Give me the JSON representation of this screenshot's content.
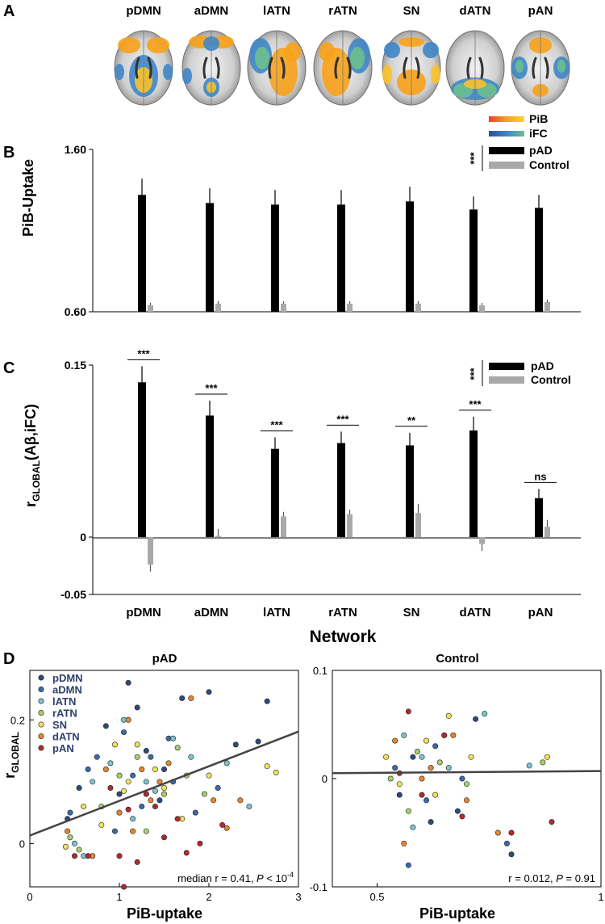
{
  "panel_labels": {
    "A": "A",
    "B": "B",
    "C": "C",
    "D": "D"
  },
  "colors": {
    "pad": "#000000",
    "control": "#a9a9a9",
    "pib_grad": [
      "#e8412b",
      "#f7a21a",
      "#f9d33a"
    ],
    "ifc_grad": [
      "#2a4f9c",
      "#3f86c6",
      "#6dbf8e"
    ],
    "fit_line": "#444444",
    "network_colors": {
      "pDMN": "#2e4a7c",
      "aDMN": "#3b6aa8",
      "lATN": "#7bc4cf",
      "rATN": "#a8cf6e",
      "SN": "#f2e15a",
      "dATN": "#e8852f",
      "pAN": "#b12a2f"
    }
  },
  "panel_a": {
    "networks": [
      "pDMN",
      "aDMN",
      "lATN",
      "rATN",
      "SN",
      "dATN",
      "pAN"
    ],
    "legend": {
      "pib": "PiB",
      "ifc": "iFC"
    }
  },
  "chart_data": [
    {
      "id": "B",
      "type": "bar",
      "title": "",
      "ylabel": "PiB-Uptake",
      "xlabel": "",
      "categories": [
        "pDMN",
        "aDMN",
        "lATN",
        "rATN",
        "SN",
        "dATN",
        "pAN"
      ],
      "ylim": [
        0.6,
        1.6
      ],
      "yticks": [
        "0.60",
        "1.60"
      ],
      "series": [
        {
          "name": "pAD",
          "values": [
            1.32,
            1.27,
            1.26,
            1.26,
            1.28,
            1.23,
            1.24
          ],
          "errors": [
            0.1,
            0.09,
            0.09,
            0.09,
            0.09,
            0.08,
            0.08
          ]
        },
        {
          "name": "Control",
          "values": [
            0.64,
            0.65,
            0.65,
            0.65,
            0.65,
            0.64,
            0.66
          ],
          "errors": [
            0.015,
            0.015,
            0.015,
            0.015,
            0.015,
            0.015,
            0.015
          ]
        }
      ],
      "legend_sig": "***",
      "legend_position": "top-right"
    },
    {
      "id": "C",
      "type": "bar",
      "ylabel_main": "r",
      "ylabel_sub": "GLOBAL",
      "ylabel_rest": "(Aβ,iFC)",
      "xlabel": "Network",
      "categories": [
        "pDMN",
        "aDMN",
        "lATN",
        "rATN",
        "SN",
        "dATN",
        "pAN"
      ],
      "ylim": [
        -0.05,
        0.15
      ],
      "yticks": [
        "0.15",
        "0",
        "-0.05"
      ],
      "series": [
        {
          "name": "pAD",
          "values": [
            0.135,
            0.106,
            0.077,
            0.082,
            0.08,
            0.093,
            0.034
          ],
          "errors": [
            0.014,
            0.013,
            0.01,
            0.01,
            0.011,
            0.012,
            0.008
          ]
        },
        {
          "name": "Control",
          "values": [
            -0.024,
            0.001,
            0.018,
            0.02,
            0.021,
            -0.006,
            0.009
          ],
          "errors": [
            0.006,
            0.006,
            0.004,
            0.004,
            0.008,
            0.006,
            0.006
          ]
        }
      ],
      "significance": [
        "***",
        "***",
        "***",
        "***",
        "**",
        "***",
        "ns"
      ],
      "legend_sig": "***",
      "legend_position": "top-right"
    },
    {
      "id": "D-left",
      "type": "scatter",
      "title": "pAD",
      "xlabel": "PiB-uptake",
      "ylabel_main": "r",
      "ylabel_sub": "GLOBAL",
      "xlim": [
        0,
        3
      ],
      "ylim": [
        -0.07,
        0.28
      ],
      "xticks": [
        "0",
        "1",
        "2",
        "3"
      ],
      "yticks": [
        "0",
        "0.2"
      ],
      "fit_line": {
        "intercept": 0.013,
        "slope": 0.056
      },
      "annotation": {
        "prefix": "median r = 0.41, ",
        "p": "P",
        "mid": " < 10",
        "exp": "-4"
      },
      "legend_position": "top-left",
      "points": [
        {
          "net": "pDMN",
          "x": 0.42,
          "y": 0.04
        },
        {
          "net": "pDMN",
          "x": 0.55,
          "y": 0.09
        },
        {
          "net": "pDMN",
          "x": 0.85,
          "y": 0.19
        },
        {
          "net": "pDMN",
          "x": 1.1,
          "y": 0.26
        },
        {
          "net": "pDMN",
          "x": 1.3,
          "y": 0.15
        },
        {
          "net": "pDMN",
          "x": 1.5,
          "y": 0.12
        },
        {
          "net": "pDMN",
          "x": 1.7,
          "y": 0.235
        },
        {
          "net": "pDMN",
          "x": 2.0,
          "y": 0.245
        },
        {
          "net": "pDMN",
          "x": 2.3,
          "y": 0.16
        },
        {
          "net": "pDMN",
          "x": 2.55,
          "y": 0.165
        },
        {
          "net": "pDMN",
          "x": 2.65,
          "y": 0.23
        },
        {
          "net": "pDMN",
          "x": 1.0,
          "y": 0.08
        },
        {
          "net": "pDMN",
          "x": 1.45,
          "y": 0.07
        },
        {
          "net": "pDMN",
          "x": 1.2,
          "y": 0.22
        },
        {
          "net": "aDMN",
          "x": 0.45,
          "y": 0.05
        },
        {
          "net": "aDMN",
          "x": 0.65,
          "y": 0.12
        },
        {
          "net": "aDMN",
          "x": 0.75,
          "y": 0.14
        },
        {
          "net": "aDMN",
          "x": 1.05,
          "y": 0.18
        },
        {
          "net": "aDMN",
          "x": 1.25,
          "y": 0.06
        },
        {
          "net": "aDMN",
          "x": 1.55,
          "y": 0.17
        },
        {
          "net": "aDMN",
          "x": 1.6,
          "y": 0.1
        },
        {
          "net": "aDMN",
          "x": 1.85,
          "y": 0.05
        },
        {
          "net": "aDMN",
          "x": 2.1,
          "y": 0.09
        },
        {
          "net": "aDMN",
          "x": 0.95,
          "y": 0.02
        },
        {
          "net": "aDMN",
          "x": 1.35,
          "y": 0.14
        },
        {
          "net": "aDMN",
          "x": 1.15,
          "y": 0.11
        },
        {
          "net": "lATN",
          "x": 0.5,
          "y": 0.0
        },
        {
          "net": "lATN",
          "x": 0.7,
          "y": 0.1
        },
        {
          "net": "lATN",
          "x": 0.9,
          "y": 0.13
        },
        {
          "net": "lATN",
          "x": 1.05,
          "y": 0.2
        },
        {
          "net": "lATN",
          "x": 1.3,
          "y": 0.1
        },
        {
          "net": "lATN",
          "x": 1.6,
          "y": 0.17
        },
        {
          "net": "lATN",
          "x": 1.8,
          "y": 0.14
        },
        {
          "net": "lATN",
          "x": 2.2,
          "y": 0.13
        },
        {
          "net": "lATN",
          "x": 2.45,
          "y": 0.06
        },
        {
          "net": "lATN",
          "x": 1.15,
          "y": 0.04
        },
        {
          "net": "lATN",
          "x": 1.4,
          "y": 0.085
        },
        {
          "net": "lATN",
          "x": 0.6,
          "y": -0.02
        },
        {
          "net": "rATN",
          "x": 0.45,
          "y": 0.01
        },
        {
          "net": "rATN",
          "x": 0.8,
          "y": 0.06
        },
        {
          "net": "rATN",
          "x": 1.0,
          "y": 0.11
        },
        {
          "net": "rATN",
          "x": 1.2,
          "y": 0.14
        },
        {
          "net": "rATN",
          "x": 1.5,
          "y": 0.08
        },
        {
          "net": "rATN",
          "x": 1.75,
          "y": 0.11
        },
        {
          "net": "rATN",
          "x": 1.95,
          "y": 0.08
        },
        {
          "net": "rATN",
          "x": 1.3,
          "y": 0.02
        },
        {
          "net": "rATN",
          "x": 0.55,
          "y": -0.01
        },
        {
          "net": "rATN",
          "x": 1.65,
          "y": 0.155
        },
        {
          "net": "SN",
          "x": 0.4,
          "y": -0.005
        },
        {
          "net": "SN",
          "x": 0.6,
          "y": 0.06
        },
        {
          "net": "SN",
          "x": 0.8,
          "y": 0.03
        },
        {
          "net": "SN",
          "x": 0.95,
          "y": 0.16
        },
        {
          "net": "SN",
          "x": 1.1,
          "y": 0.1
        },
        {
          "net": "SN",
          "x": 1.2,
          "y": 0.16
        },
        {
          "net": "SN",
          "x": 1.4,
          "y": 0.12
        },
        {
          "net": "SN",
          "x": 1.7,
          "y": 0.04
        },
        {
          "net": "SN",
          "x": 2.0,
          "y": 0.11
        },
        {
          "net": "SN",
          "x": 2.65,
          "y": 0.125
        },
        {
          "net": "SN",
          "x": 2.75,
          "y": 0.115
        },
        {
          "net": "SN",
          "x": 1.5,
          "y": 0.09
        },
        {
          "net": "SN",
          "x": 1.05,
          "y": 0.085
        },
        {
          "net": "dATN",
          "x": 0.42,
          "y": 0.02
        },
        {
          "net": "dATN",
          "x": 0.7,
          "y": -0.02
        },
        {
          "net": "dATN",
          "x": 1.0,
          "y": 0.05
        },
        {
          "net": "dATN",
          "x": 1.1,
          "y": 0.2
        },
        {
          "net": "dATN",
          "x": 1.25,
          "y": 0.12
        },
        {
          "net": "dATN",
          "x": 1.35,
          "y": 0.07
        },
        {
          "net": "dATN",
          "x": 1.55,
          "y": 0.13
        },
        {
          "net": "dATN",
          "x": 1.8,
          "y": 0.235
        },
        {
          "net": "dATN",
          "x": 2.05,
          "y": 0.07
        },
        {
          "net": "dATN",
          "x": 2.2,
          "y": 0.025
        },
        {
          "net": "dATN",
          "x": 2.35,
          "y": 0.07
        },
        {
          "net": "dATN",
          "x": 1.15,
          "y": 0.02
        },
        {
          "net": "dATN",
          "x": 0.85,
          "y": 0.12
        },
        {
          "net": "dATN",
          "x": 1.45,
          "y": 0.1
        },
        {
          "net": "pAN",
          "x": 0.5,
          "y": -0.02
        },
        {
          "net": "pAN",
          "x": 0.65,
          "y": -0.02
        },
        {
          "net": "pAN",
          "x": 1.0,
          "y": -0.02
        },
        {
          "net": "pAN",
          "x": 1.05,
          "y": -0.07
        },
        {
          "net": "pAN",
          "x": 1.2,
          "y": -0.03
        },
        {
          "net": "pAN",
          "x": 1.4,
          "y": 0.06
        },
        {
          "net": "pAN",
          "x": 1.5,
          "y": 0.01
        },
        {
          "net": "pAN",
          "x": 1.65,
          "y": 0.04
        },
        {
          "net": "pAN",
          "x": 1.75,
          "y": -0.015
        },
        {
          "net": "pAN",
          "x": 1.9,
          "y": 0.0
        },
        {
          "net": "pAN",
          "x": 2.15,
          "y": 0.03
        },
        {
          "net": "pAN",
          "x": 1.1,
          "y": 0.055
        },
        {
          "net": "pAN",
          "x": 0.9,
          "y": 0.09
        },
        {
          "net": "pAN",
          "x": 1.3,
          "y": 0.08
        }
      ]
    },
    {
      "id": "D-right",
      "type": "scatter",
      "title": "Control",
      "xlabel": "PiB-uptake",
      "ylabel_main": "",
      "xlim": [
        0.4,
        1.0
      ],
      "ylim": [
        -0.1,
        0.1
      ],
      "xticks": [
        "0.5",
        "1"
      ],
      "yticks": [
        "0.1",
        "0",
        "-0.1"
      ],
      "fit_line": {
        "intercept": 0.0037,
        "slope": 0.0033
      },
      "annotation": {
        "text1": "r = 0.012, ",
        "p": "P",
        "text2": " = 0.91"
      },
      "points": [
        {
          "net": "pDMN",
          "x": 0.58,
          "y": 0.02
        },
        {
          "net": "pDMN",
          "x": 0.62,
          "y": -0.04
        },
        {
          "net": "pDMN",
          "x": 0.65,
          "y": 0.04
        },
        {
          "net": "pDMN",
          "x": 0.72,
          "y": 0.055
        },
        {
          "net": "pDMN",
          "x": 0.8,
          "y": -0.07
        },
        {
          "net": "pDMN",
          "x": 0.55,
          "y": -0.015
        },
        {
          "net": "pDMN",
          "x": 0.68,
          "y": -0.03
        },
        {
          "net": "aDMN",
          "x": 0.54,
          "y": 0.01
        },
        {
          "net": "aDMN",
          "x": 0.57,
          "y": -0.08
        },
        {
          "net": "aDMN",
          "x": 0.63,
          "y": 0.03
        },
        {
          "net": "aDMN",
          "x": 0.69,
          "y": 0.0
        },
        {
          "net": "aDMN",
          "x": 0.79,
          "y": -0.06
        },
        {
          "net": "aDMN",
          "x": 0.61,
          "y": -0.02
        },
        {
          "net": "lATN",
          "x": 0.56,
          "y": 0.04
        },
        {
          "net": "lATN",
          "x": 0.6,
          "y": 0.02
        },
        {
          "net": "lATN",
          "x": 0.66,
          "y": 0.01
        },
        {
          "net": "lATN",
          "x": 0.74,
          "y": 0.06
        },
        {
          "net": "lATN",
          "x": 0.84,
          "y": 0.012
        },
        {
          "net": "lATN",
          "x": 0.58,
          "y": -0.045
        },
        {
          "net": "rATN",
          "x": 0.53,
          "y": 0.0
        },
        {
          "net": "rATN",
          "x": 0.59,
          "y": 0.025
        },
        {
          "net": "rATN",
          "x": 0.64,
          "y": 0.015
        },
        {
          "net": "rATN",
          "x": 0.7,
          "y": -0.005
        },
        {
          "net": "rATN",
          "x": 0.87,
          "y": 0.015
        },
        {
          "net": "rATN",
          "x": 0.57,
          "y": -0.03
        },
        {
          "net": "SN",
          "x": 0.52,
          "y": 0.02
        },
        {
          "net": "SN",
          "x": 0.55,
          "y": -0.005
        },
        {
          "net": "SN",
          "x": 0.61,
          "y": 0.035
        },
        {
          "net": "SN",
          "x": 0.66,
          "y": 0.058
        },
        {
          "net": "SN",
          "x": 0.71,
          "y": 0.02
        },
        {
          "net": "SN",
          "x": 0.88,
          "y": 0.02
        },
        {
          "net": "SN",
          "x": 0.63,
          "y": -0.015
        },
        {
          "net": "dATN",
          "x": 0.54,
          "y": 0.035
        },
        {
          "net": "dATN",
          "x": 0.56,
          "y": -0.06
        },
        {
          "net": "dATN",
          "x": 0.62,
          "y": 0.01
        },
        {
          "net": "dATN",
          "x": 0.67,
          "y": 0.04
        },
        {
          "net": "dATN",
          "x": 0.7,
          "y": -0.02
        },
        {
          "net": "dATN",
          "x": 0.77,
          "y": -0.05
        },
        {
          "net": "dATN",
          "x": 0.6,
          "y": 0.0
        },
        {
          "net": "pAN",
          "x": 0.57,
          "y": 0.062
        },
        {
          "net": "pAN",
          "x": 0.6,
          "y": -0.015
        },
        {
          "net": "pAN",
          "x": 0.65,
          "y": 0.04
        },
        {
          "net": "pAN",
          "x": 0.69,
          "y": -0.035
        },
        {
          "net": "pAN",
          "x": 0.8,
          "y": -0.05
        },
        {
          "net": "pAN",
          "x": 0.89,
          "y": -0.04
        },
        {
          "net": "pAN",
          "x": 0.55,
          "y": 0.005
        }
      ]
    }
  ]
}
